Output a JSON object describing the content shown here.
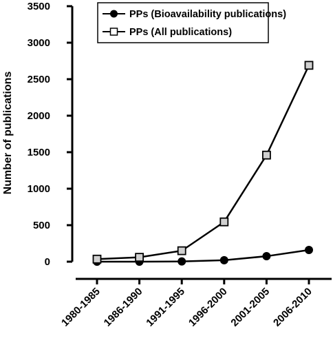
{
  "chart_data": {
    "type": "line",
    "title": "",
    "xlabel": "",
    "ylabel": "Number of publications",
    "categories": [
      "1980-1985",
      "1986-1990",
      "1991-1995",
      "1996-2000",
      "2001-2005",
      "2006-2010"
    ],
    "ylim": [
      0,
      3500
    ],
    "yticks": [
      0,
      500,
      1000,
      1500,
      2000,
      2500,
      3000,
      3500
    ],
    "grid": false,
    "legend_position": "top-right",
    "series": [
      {
        "name": "PPs (Bioavailability publications)",
        "marker": "filled-circle",
        "color": "#000000",
        "values": [
          0,
          0,
          3,
          20,
          75,
          160
        ]
      },
      {
        "name": "PPs (All publications)",
        "marker": "open-square",
        "color": "#000000",
        "marker_fill": "#d0d0d0",
        "values": [
          35,
          60,
          150,
          545,
          1460,
          2690
        ]
      }
    ]
  }
}
